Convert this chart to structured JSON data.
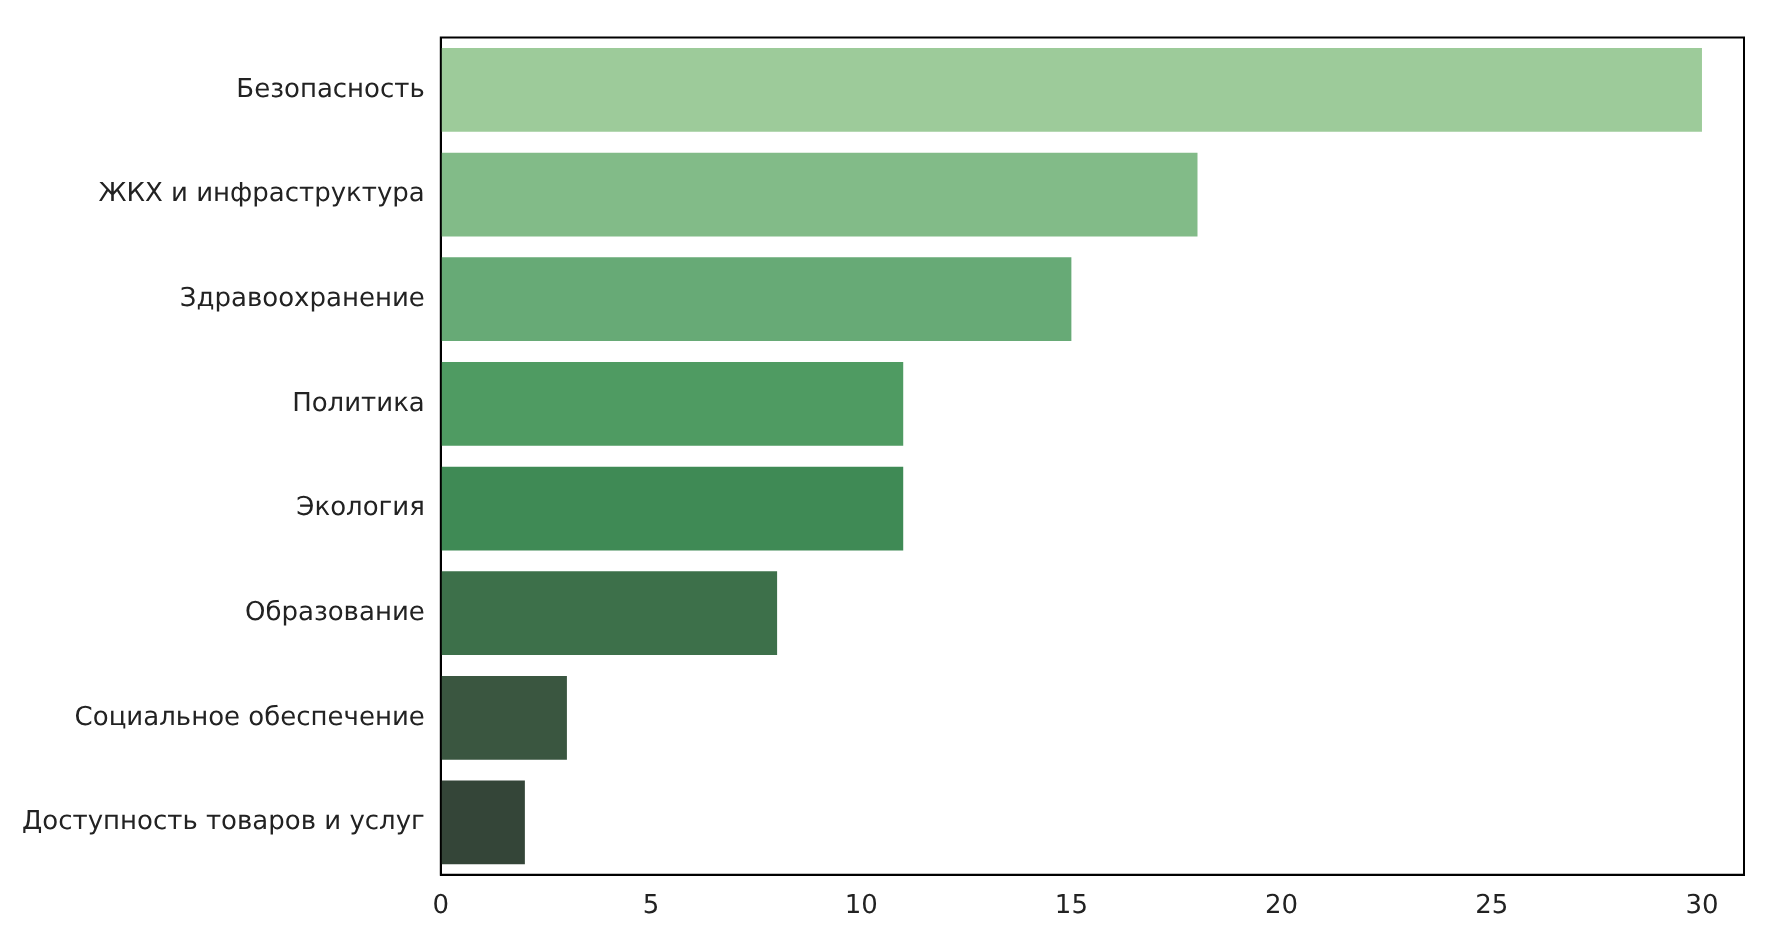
{
  "chart_data": {
    "type": "bar",
    "orientation": "horizontal",
    "categories": [
      "Безопасность",
      "ЖКХ и инфраструктура",
      "Здравоохранение",
      "Политика",
      "Экология",
      "Образование",
      "Социальное обеспечение",
      "Доступность товаров и услуг"
    ],
    "values": [
      30,
      18,
      15,
      11,
      11,
      8,
      3,
      2
    ],
    "colors": [
      "#9dcb9a",
      "#82bb88",
      "#67aa76",
      "#4f9b62",
      "#3f8a55",
      "#3d704a",
      "#3a5640",
      "#344538"
    ],
    "xlim": [
      0,
      31
    ],
    "xticks": [
      0,
      5,
      10,
      15,
      20,
      25,
      30
    ],
    "grid": false,
    "legend": false
  }
}
